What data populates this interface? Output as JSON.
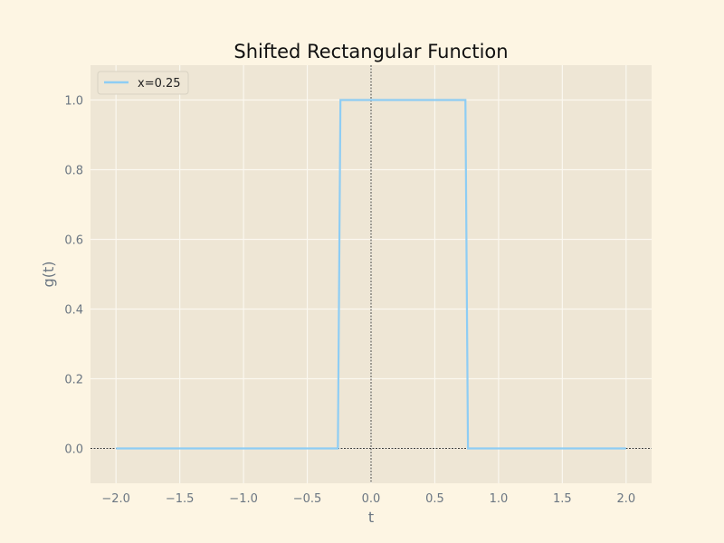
{
  "chart_data": {
    "type": "line",
    "title": "Shifted Rectangular Function",
    "xlabel": "t",
    "ylabel": "g(t)",
    "xlim": [
      -2.2,
      2.2
    ],
    "ylim": [
      -0.1,
      1.1
    ],
    "xticks": [
      -2.0,
      -1.5,
      -1.0,
      -0.5,
      0.0,
      0.5,
      1.0,
      1.5,
      2.0
    ],
    "xtick_labels": [
      "−2.0",
      "−1.5",
      "−1.0",
      "−0.5",
      "0.0",
      "0.5",
      "1.0",
      "1.5",
      "2.0"
    ],
    "yticks": [
      0.0,
      0.2,
      0.4,
      0.6,
      0.8,
      1.0
    ],
    "ytick_labels": [
      "0.0",
      "0.2",
      "0.4",
      "0.6",
      "0.8",
      "1.0"
    ],
    "grid": true,
    "legend_position": "top-left",
    "series": [
      {
        "name": "x=0.25",
        "color": "#8ecdf4",
        "x": [
          -2.0,
          -0.26,
          -0.24,
          0.74,
          0.76,
          2.0
        ],
        "y": [
          0.0,
          0.0,
          1.0,
          1.0,
          0.0,
          0.0
        ]
      }
    ],
    "reference_lines": {
      "horizontal_at_y": 0,
      "vertical_at_x": 0,
      "color": "#000000",
      "style": "dotted"
    }
  },
  "colors": {
    "figure_background": "#fdf5e3",
    "plot_background": "#eee6d5",
    "grid": "#fbf8f0"
  }
}
